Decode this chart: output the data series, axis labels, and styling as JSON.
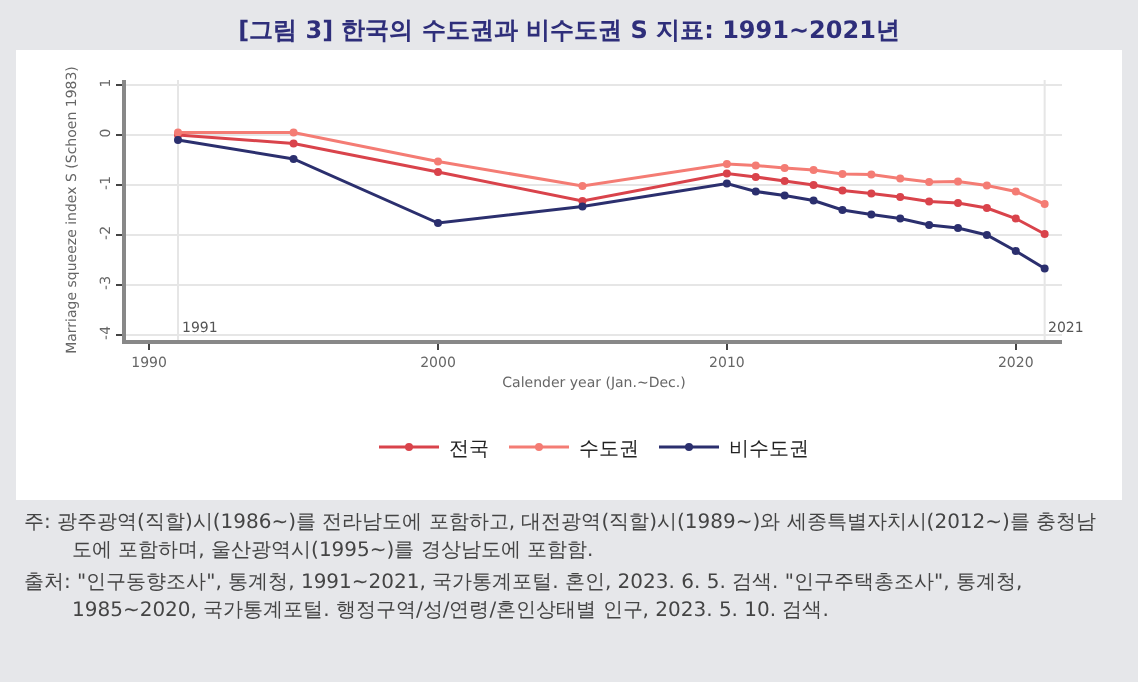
{
  "chart_data": {
    "type": "line",
    "title": "[그림 3] 한국의 수도권과 비수도권 S 지표: 1991~2021년",
    "xlabel": "Calender year (Jan.~Dec.)",
    "ylabel": "Marriage squeeze index S (Schoen 1983)",
    "x": [
      1991,
      1995,
      2000,
      2005,
      2010,
      2011,
      2012,
      2013,
      2014,
      2015,
      2016,
      2017,
      2018,
      2019,
      2020,
      2021
    ],
    "series": [
      {
        "name": "전국",
        "color": "#d9434b",
        "values": [
          0.0,
          -0.17,
          -0.74,
          -1.32,
          -0.77,
          -0.84,
          -0.92,
          -1.0,
          -1.11,
          -1.17,
          -1.24,
          -1.33,
          -1.36,
          -1.46,
          -1.67,
          -1.98
        ]
      },
      {
        "name": "수도권",
        "color": "#f47c74",
        "values": [
          0.05,
          0.05,
          -0.53,
          -1.02,
          -0.58,
          -0.61,
          -0.66,
          -0.7,
          -0.78,
          -0.79,
          -0.87,
          -0.94,
          -0.93,
          -1.01,
          -1.13,
          -1.38
        ]
      },
      {
        "name": "비수도권",
        "color": "#2b2f6e",
        "values": [
          -0.1,
          -0.48,
          -1.76,
          -1.43,
          -0.97,
          -1.13,
          -1.21,
          -1.31,
          -1.5,
          -1.59,
          -1.67,
          -1.8,
          -1.86,
          -2.0,
          -2.32,
          -2.67
        ]
      }
    ],
    "xlim": [
      1989.2,
      2021.6
    ],
    "xticks": [
      1990,
      2000,
      2010,
      2020
    ],
    "ylim": [
      -4.1,
      1.1
    ],
    "yticks": [
      -4,
      -3,
      -2,
      -1,
      0,
      1
    ],
    "ref_lines": [
      {
        "axis": "x",
        "value": 1991,
        "label": "1991",
        "color": "#e6e6e6"
      },
      {
        "axis": "x",
        "value": 2021,
        "label": "2021",
        "color": "#e6e6e6"
      }
    ],
    "grid": "y",
    "legend": "bottom",
    "marker": "circle",
    "line_style": "solid",
    "annotations": [
      "주: 광주광역(직할)시(1986~)를 전라남도에 포함하고, 대전광역(직할)시(1989~)와 세종특별자치시(2012~)를 충청남도에 포함하며, 울산광역시(1995~)를 경상남도에 포함함.",
      "출처: \"인구동향조사\", 통계청, 1991~2021, 국가통계포털. 혼인, 2023. 6. 5. 검색. \"인구주택총조사\", 통계청, 1985~2020, 국가통계포털. 행정구역/성/연령/혼인상태별 인구, 2023. 5. 10. 검색."
    ]
  }
}
